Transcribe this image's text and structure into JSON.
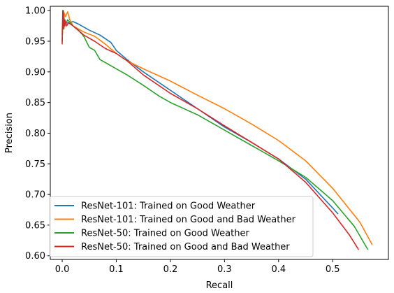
{
  "chart_data": {
    "type": "line",
    "title": "",
    "xlabel": "Recall",
    "ylabel": "Precision",
    "xlim": [
      -0.022,
      0.603
    ],
    "ylim": [
      0.594,
      1.007
    ],
    "xticks": [
      0.0,
      0.1,
      0.2,
      0.3,
      0.4,
      0.5
    ],
    "xtick_labels": [
      "0.0",
      "0.1",
      "0.2",
      "0.3",
      "0.4",
      "0.5"
    ],
    "yticks": [
      0.6,
      0.65,
      0.7,
      0.75,
      0.8,
      0.85,
      0.9,
      0.95,
      1.0
    ],
    "ytick_labels": [
      "0.60",
      "0.65",
      "0.70",
      "0.75",
      "0.80",
      "0.85",
      "0.90",
      "0.95",
      "1.00"
    ],
    "grid": false,
    "legend_position": "lower-left",
    "series": [
      {
        "name": "ResNet-101: Trained on Good Weather",
        "color": "#1f77b4",
        "points": [
          [
            0.0,
            0.96
          ],
          [
            0.002,
            1.0
          ],
          [
            0.004,
            0.98
          ],
          [
            0.01,
            0.98
          ],
          [
            0.02,
            0.982
          ],
          [
            0.03,
            0.978
          ],
          [
            0.05,
            0.968
          ],
          [
            0.07,
            0.96
          ],
          [
            0.09,
            0.948
          ],
          [
            0.1,
            0.935
          ],
          [
            0.12,
            0.92
          ],
          [
            0.15,
            0.9
          ],
          [
            0.2,
            0.87
          ],
          [
            0.25,
            0.84
          ],
          [
            0.3,
            0.81
          ],
          [
            0.35,
            0.785
          ],
          [
            0.4,
            0.758
          ],
          [
            0.45,
            0.725
          ],
          [
            0.5,
            0.678
          ],
          [
            0.51,
            0.668
          ]
        ]
      },
      {
        "name": "ResNet-101: Trained on Good and Bad Weather",
        "color": "#ff7f0e",
        "points": [
          [
            0.0,
            0.965
          ],
          [
            0.002,
            1.0
          ],
          [
            0.006,
            0.99
          ],
          [
            0.01,
            0.998
          ],
          [
            0.014,
            0.985
          ],
          [
            0.02,
            0.975
          ],
          [
            0.04,
            0.965
          ],
          [
            0.06,
            0.958
          ],
          [
            0.08,
            0.945
          ],
          [
            0.1,
            0.93
          ],
          [
            0.12,
            0.918
          ],
          [
            0.15,
            0.905
          ],
          [
            0.2,
            0.885
          ],
          [
            0.25,
            0.862
          ],
          [
            0.3,
            0.84
          ],
          [
            0.35,
            0.815
          ],
          [
            0.4,
            0.788
          ],
          [
            0.45,
            0.755
          ],
          [
            0.5,
            0.71
          ],
          [
            0.55,
            0.655
          ],
          [
            0.573,
            0.618
          ]
        ]
      },
      {
        "name": "ResNet-50: Trained on Good Weather",
        "color": "#2ca02c",
        "points": [
          [
            0.0,
            0.95
          ],
          [
            0.002,
            1.0
          ],
          [
            0.005,
            0.975
          ],
          [
            0.01,
            0.985
          ],
          [
            0.02,
            0.975
          ],
          [
            0.03,
            0.968
          ],
          [
            0.04,
            0.958
          ],
          [
            0.05,
            0.94
          ],
          [
            0.06,
            0.935
          ],
          [
            0.07,
            0.92
          ],
          [
            0.08,
            0.915
          ],
          [
            0.1,
            0.905
          ],
          [
            0.12,
            0.895
          ],
          [
            0.15,
            0.878
          ],
          [
            0.18,
            0.86
          ],
          [
            0.2,
            0.85
          ],
          [
            0.25,
            0.83
          ],
          [
            0.3,
            0.805
          ],
          [
            0.35,
            0.78
          ],
          [
            0.4,
            0.755
          ],
          [
            0.45,
            0.728
          ],
          [
            0.5,
            0.69
          ],
          [
            0.54,
            0.648
          ],
          [
            0.565,
            0.61
          ]
        ]
      },
      {
        "name": "ResNet-50: Trained on Good and Bad Weather",
        "color": "#d62728",
        "points": [
          [
            0.0,
            0.945
          ],
          [
            0.001,
            1.0
          ],
          [
            0.003,
            0.97
          ],
          [
            0.005,
            0.985
          ],
          [
            0.008,
            0.975
          ],
          [
            0.012,
            0.98
          ],
          [
            0.02,
            0.975
          ],
          [
            0.04,
            0.96
          ],
          [
            0.06,
            0.95
          ],
          [
            0.08,
            0.938
          ],
          [
            0.1,
            0.93
          ],
          [
            0.12,
            0.918
          ],
          [
            0.15,
            0.895
          ],
          [
            0.2,
            0.865
          ],
          [
            0.25,
            0.84
          ],
          [
            0.3,
            0.812
          ],
          [
            0.35,
            0.785
          ],
          [
            0.4,
            0.758
          ],
          [
            0.45,
            0.72
          ],
          [
            0.5,
            0.67
          ],
          [
            0.53,
            0.635
          ],
          [
            0.548,
            0.61
          ]
        ]
      }
    ]
  }
}
